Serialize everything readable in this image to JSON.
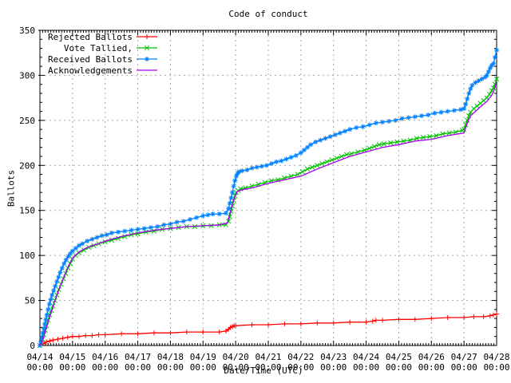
{
  "chart_data": {
    "type": "line",
    "title": "Code of conduct",
    "xlabel": "Date/Time (UTC)",
    "ylabel": "Ballots",
    "xlim": [
      0,
      14
    ],
    "ylim": [
      0,
      350
    ],
    "grid": true,
    "legend_position": "top-left",
    "x_tick_dates": [
      "04/14",
      "04/15",
      "04/16",
      "04/17",
      "04/18",
      "04/19",
      "04/20",
      "04/21",
      "04/22",
      "04/23",
      "04/24",
      "04/25",
      "04/26",
      "04/27",
      "04/28"
    ],
    "x_tick_time": "00:00",
    "y_ticks": [
      0,
      50,
      100,
      150,
      200,
      250,
      300,
      350
    ],
    "colors": {
      "border": "#000000",
      "grid": "#a8a8a8",
      "background": "#ffffff"
    },
    "series": [
      {
        "name": "Rejected Ballots",
        "color": "#ff0000",
        "marker": "plus",
        "points": [
          [
            0,
            0
          ],
          [
            0.1,
            2
          ],
          [
            0.2,
            4
          ],
          [
            0.3,
            5
          ],
          [
            0.4,
            6
          ],
          [
            0.55,
            7
          ],
          [
            0.7,
            8
          ],
          [
            0.85,
            9
          ],
          [
            1.0,
            10
          ],
          [
            1.2,
            10
          ],
          [
            1.4,
            11
          ],
          [
            1.6,
            11
          ],
          [
            1.8,
            12
          ],
          [
            2.0,
            12
          ],
          [
            2.5,
            13
          ],
          [
            3.0,
            13
          ],
          [
            3.5,
            14
          ],
          [
            4.0,
            14
          ],
          [
            4.5,
            15
          ],
          [
            5.0,
            15
          ],
          [
            5.5,
            15
          ],
          [
            5.7,
            16
          ],
          [
            5.78,
            18
          ],
          [
            5.84,
            20
          ],
          [
            5.9,
            21
          ],
          [
            5.95,
            22
          ],
          [
            6.0,
            22
          ],
          [
            6.5,
            23
          ],
          [
            7.0,
            23
          ],
          [
            7.5,
            24
          ],
          [
            8.0,
            24
          ],
          [
            8.5,
            25
          ],
          [
            9.0,
            25
          ],
          [
            9.5,
            26
          ],
          [
            10.0,
            26
          ],
          [
            10.2,
            27
          ],
          [
            10.3,
            28
          ],
          [
            10.5,
            28
          ],
          [
            11.0,
            29
          ],
          [
            11.5,
            29
          ],
          [
            12.0,
            30
          ],
          [
            12.5,
            31
          ],
          [
            13.0,
            31
          ],
          [
            13.3,
            32
          ],
          [
            13.6,
            32
          ],
          [
            13.8,
            33
          ],
          [
            13.9,
            34
          ],
          [
            14.0,
            35
          ]
        ]
      },
      {
        "name": "Vote Tallied,",
        "color": "#00c000",
        "marker": "cross",
        "points": [
          [
            0,
            0
          ],
          [
            0.04,
            3
          ],
          [
            0.08,
            7
          ],
          [
            0.12,
            12
          ],
          [
            0.16,
            17
          ],
          [
            0.2,
            22
          ],
          [
            0.25,
            28
          ],
          [
            0.3,
            34
          ],
          [
            0.35,
            39
          ],
          [
            0.4,
            44
          ],
          [
            0.46,
            50
          ],
          [
            0.52,
            56
          ],
          [
            0.58,
            62
          ],
          [
            0.65,
            68
          ],
          [
            0.72,
            74
          ],
          [
            0.79,
            80
          ],
          [
            0.86,
            86
          ],
          [
            0.93,
            91
          ],
          [
            1.0,
            96
          ],
          [
            1.1,
            100
          ],
          [
            1.2,
            103
          ],
          [
            1.35,
            106
          ],
          [
            1.5,
            109
          ],
          [
            1.65,
            111
          ],
          [
            1.8,
            113
          ],
          [
            2.0,
            115
          ],
          [
            2.2,
            117
          ],
          [
            2.4,
            119
          ],
          [
            2.6,
            121
          ],
          [
            2.8,
            123
          ],
          [
            3.0,
            124
          ],
          [
            3.25,
            126
          ],
          [
            3.5,
            127
          ],
          [
            3.75,
            129
          ],
          [
            4.0,
            130
          ],
          [
            4.25,
            131
          ],
          [
            4.5,
            132
          ],
          [
            4.75,
            132
          ],
          [
            5.0,
            133
          ],
          [
            5.25,
            133
          ],
          [
            5.5,
            134
          ],
          [
            5.7,
            134
          ],
          [
            5.78,
            138
          ],
          [
            5.82,
            143
          ],
          [
            5.86,
            149
          ],
          [
            5.9,
            155
          ],
          [
            5.94,
            161
          ],
          [
            5.98,
            166
          ],
          [
            6.02,
            170
          ],
          [
            6.08,
            172
          ],
          [
            6.15,
            174
          ],
          [
            6.3,
            175
          ],
          [
            6.5,
            177
          ],
          [
            6.7,
            179
          ],
          [
            6.9,
            181
          ],
          [
            7.1,
            183
          ],
          [
            7.3,
            184
          ],
          [
            7.5,
            186
          ],
          [
            7.7,
            188
          ],
          [
            7.9,
            190
          ],
          [
            8.05,
            193
          ],
          [
            8.2,
            196
          ],
          [
            8.35,
            198
          ],
          [
            8.5,
            200
          ],
          [
            8.65,
            202
          ],
          [
            8.8,
            204
          ],
          [
            8.95,
            206
          ],
          [
            9.1,
            208
          ],
          [
            9.25,
            210
          ],
          [
            9.4,
            212
          ],
          [
            9.55,
            213
          ],
          [
            9.75,
            215
          ],
          [
            9.95,
            217
          ],
          [
            10.1,
            219
          ],
          [
            10.25,
            221
          ],
          [
            10.4,
            223
          ],
          [
            10.55,
            224
          ],
          [
            10.75,
            225
          ],
          [
            10.95,
            226
          ],
          [
            11.15,
            227
          ],
          [
            11.35,
            228
          ],
          [
            11.55,
            230
          ],
          [
            11.75,
            231
          ],
          [
            11.95,
            232
          ],
          [
            12.15,
            233
          ],
          [
            12.35,
            235
          ],
          [
            12.55,
            236
          ],
          [
            12.75,
            237
          ],
          [
            12.95,
            239
          ],
          [
            13.0,
            240
          ],
          [
            13.05,
            245
          ],
          [
            13.1,
            250
          ],
          [
            13.15,
            255
          ],
          [
            13.2,
            259
          ],
          [
            13.3,
            263
          ],
          [
            13.4,
            266
          ],
          [
            13.5,
            269
          ],
          [
            13.6,
            272
          ],
          [
            13.7,
            275
          ],
          [
            13.78,
            279
          ],
          [
            13.85,
            283
          ],
          [
            13.9,
            286
          ],
          [
            13.95,
            290
          ],
          [
            14.0,
            296
          ]
        ]
      },
      {
        "name": "Received Ballots",
        "color": "#0080ff",
        "marker": "star",
        "points": [
          [
            0,
            0
          ],
          [
            0.03,
            4
          ],
          [
            0.06,
            9
          ],
          [
            0.09,
            14
          ],
          [
            0.12,
            19
          ],
          [
            0.15,
            24
          ],
          [
            0.18,
            29
          ],
          [
            0.21,
            34
          ],
          [
            0.25,
            40
          ],
          [
            0.29,
            46
          ],
          [
            0.33,
            51
          ],
          [
            0.37,
            56
          ],
          [
            0.42,
            61
          ],
          [
            0.47,
            66
          ],
          [
            0.52,
            71
          ],
          [
            0.57,
            76
          ],
          [
            0.62,
            81
          ],
          [
            0.68,
            86
          ],
          [
            0.74,
            91
          ],
          [
            0.8,
            95
          ],
          [
            0.87,
            99
          ],
          [
            0.93,
            102
          ],
          [
            1.0,
            105
          ],
          [
            1.1,
            108
          ],
          [
            1.2,
            111
          ],
          [
            1.3,
            113
          ],
          [
            1.45,
            116
          ],
          [
            1.6,
            118
          ],
          [
            1.75,
            120
          ],
          [
            1.9,
            122
          ],
          [
            2.05,
            123
          ],
          [
            2.2,
            125
          ],
          [
            2.4,
            126
          ],
          [
            2.6,
            127
          ],
          [
            2.8,
            128
          ],
          [
            3.0,
            129
          ],
          [
            3.2,
            130
          ],
          [
            3.4,
            131
          ],
          [
            3.6,
            132
          ],
          [
            3.8,
            134
          ],
          [
            4.0,
            135
          ],
          [
            4.2,
            137
          ],
          [
            4.4,
            138
          ],
          [
            4.6,
            140
          ],
          [
            4.8,
            142
          ],
          [
            5.0,
            144
          ],
          [
            5.15,
            145
          ],
          [
            5.3,
            146
          ],
          [
            5.5,
            146
          ],
          [
            5.7,
            147
          ],
          [
            5.78,
            152
          ],
          [
            5.82,
            158
          ],
          [
            5.86,
            164
          ],
          [
            5.9,
            170
          ],
          [
            5.94,
            177
          ],
          [
            5.98,
            183
          ],
          [
            6.02,
            188
          ],
          [
            6.06,
            191
          ],
          [
            6.1,
            193
          ],
          [
            6.2,
            194
          ],
          [
            6.35,
            195
          ],
          [
            6.5,
            197
          ],
          [
            6.65,
            198
          ],
          [
            6.8,
            199
          ],
          [
            6.95,
            200
          ],
          [
            7.1,
            202
          ],
          [
            7.25,
            204
          ],
          [
            7.4,
            205
          ],
          [
            7.55,
            207
          ],
          [
            7.7,
            209
          ],
          [
            7.85,
            211
          ],
          [
            8.0,
            214
          ],
          [
            8.1,
            217
          ],
          [
            8.2,
            220
          ],
          [
            8.3,
            223
          ],
          [
            8.45,
            226
          ],
          [
            8.6,
            228
          ],
          [
            8.75,
            230
          ],
          [
            8.9,
            232
          ],
          [
            9.05,
            234
          ],
          [
            9.2,
            236
          ],
          [
            9.35,
            238
          ],
          [
            9.5,
            240
          ],
          [
            9.7,
            242
          ],
          [
            9.9,
            243
          ],
          [
            10.1,
            245
          ],
          [
            10.3,
            247
          ],
          [
            10.5,
            248
          ],
          [
            10.7,
            249
          ],
          [
            10.9,
            250
          ],
          [
            11.1,
            252
          ],
          [
            11.3,
            253
          ],
          [
            11.5,
            254
          ],
          [
            11.7,
            255
          ],
          [
            11.9,
            256
          ],
          [
            12.1,
            258
          ],
          [
            12.3,
            259
          ],
          [
            12.5,
            260
          ],
          [
            12.7,
            261
          ],
          [
            12.9,
            262
          ],
          [
            13.0,
            263
          ],
          [
            13.05,
            268
          ],
          [
            13.1,
            274
          ],
          [
            13.15,
            280
          ],
          [
            13.2,
            285
          ],
          [
            13.25,
            289
          ],
          [
            13.35,
            292
          ],
          [
            13.45,
            294
          ],
          [
            13.55,
            296
          ],
          [
            13.65,
            298
          ],
          [
            13.7,
            300
          ],
          [
            13.75,
            304
          ],
          [
            13.8,
            308
          ],
          [
            13.85,
            311
          ],
          [
            13.9,
            313
          ],
          [
            13.95,
            320
          ],
          [
            14.0,
            328
          ]
        ]
      },
      {
        "name": "Acknowledgements",
        "color": "#a800f0",
        "marker": "none",
        "points": [
          [
            0,
            0
          ],
          [
            0.1,
            8
          ],
          [
            0.2,
            20
          ],
          [
            0.3,
            32
          ],
          [
            0.4,
            43
          ],
          [
            0.5,
            54
          ],
          [
            0.6,
            64
          ],
          [
            0.7,
            73
          ],
          [
            0.8,
            82
          ],
          [
            0.9,
            90
          ],
          [
            1.0,
            97
          ],
          [
            1.2,
            104
          ],
          [
            1.4,
            108
          ],
          [
            1.6,
            111
          ],
          [
            1.8,
            113
          ],
          [
            2.0,
            116
          ],
          [
            2.5,
            121
          ],
          [
            3.0,
            125
          ],
          [
            3.5,
            128
          ],
          [
            4.0,
            130
          ],
          [
            4.5,
            132
          ],
          [
            5.0,
            133
          ],
          [
            5.5,
            134
          ],
          [
            5.75,
            136
          ],
          [
            5.85,
            150
          ],
          [
            5.95,
            163
          ],
          [
            6.05,
            171
          ],
          [
            6.2,
            173
          ],
          [
            6.5,
            175
          ],
          [
            7.0,
            180
          ],
          [
            7.5,
            184
          ],
          [
            8.0,
            188
          ],
          [
            8.5,
            196
          ],
          [
            9.0,
            203
          ],
          [
            9.5,
            210
          ],
          [
            10.0,
            215
          ],
          [
            10.5,
            220
          ],
          [
            11.0,
            223
          ],
          [
            11.5,
            227
          ],
          [
            12.0,
            229
          ],
          [
            12.5,
            233
          ],
          [
            13.0,
            236
          ],
          [
            13.1,
            247
          ],
          [
            13.2,
            255
          ],
          [
            13.35,
            260
          ],
          [
            13.5,
            265
          ],
          [
            13.7,
            271
          ],
          [
            13.85,
            278
          ],
          [
            13.95,
            286
          ],
          [
            14.0,
            293
          ]
        ]
      }
    ]
  }
}
